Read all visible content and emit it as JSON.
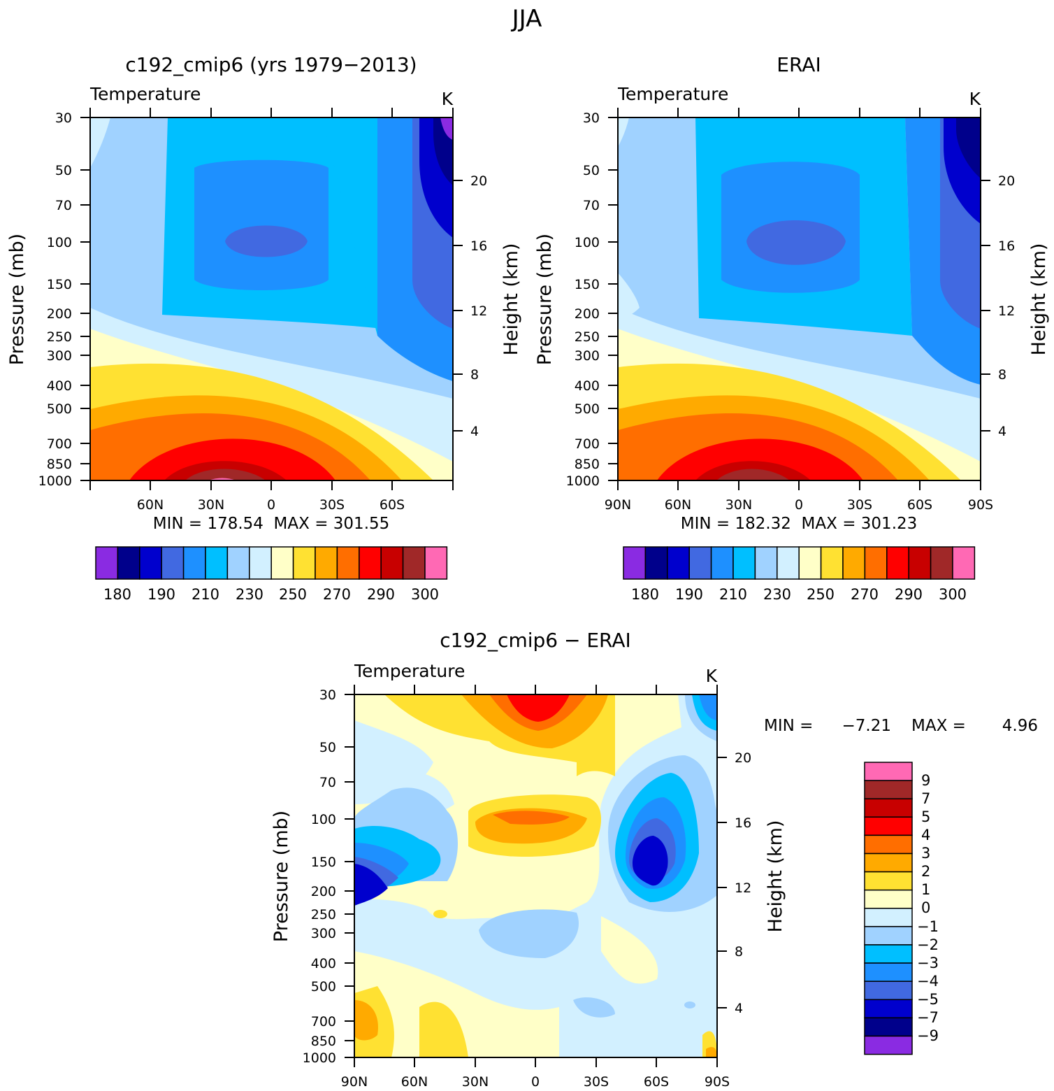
{
  "figure_title": "JJA",
  "chart_data": [
    {
      "type": "heatmap",
      "title": "c192_cmip6 (yrs 1979−2013)",
      "subtitle": "Temperature",
      "units": "K",
      "ylabel": "Pressure (mb)",
      "ylabel_right": "Height (km)",
      "x_ticks": [
        "60N",
        "30N",
        "0",
        "30S",
        "60S"
      ],
      "y_ticks": [
        "30",
        "50",
        "70",
        "100",
        "150",
        "200",
        "250",
        "300",
        "400",
        "500",
        "700",
        "850",
        "1000"
      ],
      "y_ticks_right": [
        "20",
        "16",
        "12",
        "8",
        "4"
      ],
      "stats": "MIN = 178.54  MAX = 301.55",
      "min": 178.54,
      "max": 301.55
    },
    {
      "type": "heatmap",
      "title": "ERAI",
      "subtitle": "Temperature",
      "units": "K",
      "ylabel": "Pressure (mb)",
      "ylabel_right": "Height (km)",
      "x_ticks": [
        "90N",
        "60N",
        "30N",
        "0",
        "30S",
        "60S",
        "90S"
      ],
      "y_ticks": [
        "30",
        "50",
        "70",
        "100",
        "150",
        "200",
        "250",
        "300",
        "400",
        "500",
        "700",
        "850",
        "1000"
      ],
      "y_ticks_right": [
        "20",
        "16",
        "12",
        "8",
        "4"
      ],
      "stats": "MIN = 182.32  MAX = 301.23",
      "min": 182.32,
      "max": 301.23
    },
    {
      "type": "heatmap",
      "title": "c192_cmip6 − ERAI",
      "subtitle": "Temperature",
      "units": "K",
      "ylabel": "Pressure (mb)",
      "ylabel_right": "Height (km)",
      "x_ticks": [
        "90N",
        "60N",
        "30N",
        "0",
        "30S",
        "60S",
        "90S"
      ],
      "y_ticks": [
        "30",
        "50",
        "70",
        "100",
        "150",
        "200",
        "250",
        "300",
        "400",
        "500",
        "700",
        "850",
        "1000"
      ],
      "y_ticks_right": [
        "20",
        "16",
        "12",
        "8",
        "4"
      ],
      "stats_min_label": "MIN =",
      "stats_min_value": "−7.21",
      "stats_max_label": "MAX =",
      "stats_max_value": "4.96",
      "min": -7.21,
      "max": 4.96
    }
  ],
  "colorbar_abs": {
    "colors": [
      "#8a2be2",
      "#00008b",
      "#0000cd",
      "#4169e1",
      "#1e90ff",
      "#00bfff",
      "#a0d2ff",
      "#d2f0ff",
      "#ffffc8",
      "#ffe132",
      "#ffaa00",
      "#ff6e00",
      "#ff0000",
      "#c80000",
      "#a02828",
      "#ff69b4"
    ],
    "labels": [
      "180",
      "190",
      "210",
      "230",
      "250",
      "270",
      "290",
      "300"
    ]
  },
  "colorbar_diff": {
    "colors": [
      "#ff69b4",
      "#a02828",
      "#c80000",
      "#ff0000",
      "#ff6e00",
      "#ffaa00",
      "#ffe132",
      "#ffffc8",
      "#d2f0ff",
      "#a0d2ff",
      "#00bfff",
      "#1e90ff",
      "#4169e1",
      "#0000cd",
      "#00008b",
      "#8a2be2"
    ],
    "labels": [
      "9",
      "7",
      "5",
      "4",
      "3",
      "2",
      "1",
      "0",
      "−1",
      "−2",
      "−3",
      "−4",
      "−5",
      "−7",
      "−9"
    ]
  }
}
